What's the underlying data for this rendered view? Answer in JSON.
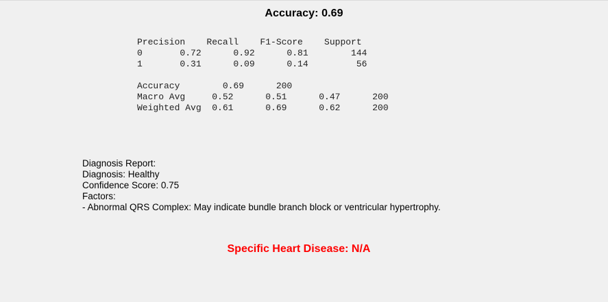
{
  "title": "Accuracy: 0.69",
  "classification_report": {
    "lines": [
      "Precision    Recall    F1-Score    Support",
      "0       0.72      0.92      0.81        144",
      "1       0.31      0.09      0.14         56",
      "",
      "Accuracy        0.69      200",
      "Macro Avg     0.52      0.51      0.47      200",
      "Weighted Avg  0.61      0.69      0.62      200"
    ]
  },
  "diagnosis_report": {
    "heading": "Diagnosis Report:",
    "diagnosis": "Diagnosis: Healthy",
    "confidence": "Confidence Score: 0.75",
    "factors_heading": "Factors:",
    "factors": [
      "- Abnormal QRS Complex: May indicate bundle branch block or ventricular hypertrophy."
    ]
  },
  "specific_disease": "Specific Heart Disease: N/A",
  "colors": {
    "background": "#f0f0f0",
    "disease_text": "#ff0000"
  }
}
